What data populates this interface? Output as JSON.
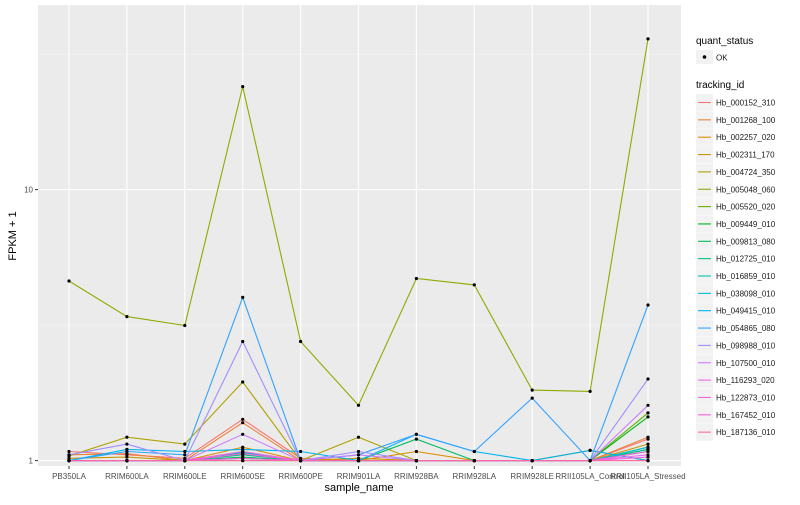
{
  "chart_data": {
    "type": "line",
    "title": "",
    "xlabel": "sample_name",
    "ylabel": "FPKM + 1",
    "y_scale": "log10",
    "ylim": [
      0.955,
      48
    ],
    "y_ticks": [
      {
        "value": 1,
        "label": "1"
      },
      {
        "value": 10,
        "label": "10"
      }
    ],
    "categories": [
      "PB350LA",
      "RRIM600LA",
      "RRIM600LE",
      "RRIM600SE",
      "RRIM600PE",
      "RRIM901LA",
      "RRIM928BA",
      "RRIM928LA",
      "RRIM928LE",
      "RRII105LA_Control",
      "RRII105LA_Stressed"
    ],
    "point_label": "OK",
    "legend": {
      "position": "right",
      "quant_status_title": "quant_status",
      "tracking_id_title": "tracking_id"
    },
    "series": [
      {
        "name": "Hb_000152_310",
        "color": "#F8766D",
        "values": [
          1.08,
          1.05,
          1.02,
          1.42,
          1.02,
          1.0,
          1.0,
          1.0,
          1.0,
          1.0,
          1.2
        ]
      },
      {
        "name": "Hb_001268_100",
        "color": "#EC8239",
        "values": [
          1.05,
          1.06,
          1.0,
          1.38,
          1.0,
          1.0,
          1.0,
          1.0,
          1.0,
          1.0,
          1.22
        ]
      },
      {
        "name": "Hb_002257_020",
        "color": "#DB8E00",
        "values": [
          1.0,
          1.0,
          1.0,
          1.12,
          1.0,
          1.0,
          1.08,
          1.0,
          1.0,
          1.09,
          1.0
        ]
      },
      {
        "name": "Hb_002311_170",
        "color": "#C79800",
        "values": [
          1.02,
          1.03,
          1.0,
          1.08,
          1.0,
          1.02,
          1.0,
          1.0,
          1.0,
          1.0,
          1.15
        ]
      },
      {
        "name": "Hb_004724_350",
        "color": "#AEA200",
        "values": [
          1.04,
          1.22,
          1.15,
          1.95,
          1.0,
          1.22,
          1.0,
          1.0,
          1.0,
          1.0,
          1.12
        ]
      },
      {
        "name": "Hb_005048_060",
        "color": "#8FAA00",
        "values": [
          4.6,
          3.4,
          3.15,
          24.0,
          2.75,
          1.6,
          4.7,
          4.45,
          1.82,
          1.8,
          36.0
        ]
      },
      {
        "name": "Hb_005520_020",
        "color": "#64B200",
        "values": [
          1.0,
          1.0,
          1.0,
          1.0,
          1.0,
          1.0,
          1.0,
          1.0,
          1.0,
          1.0,
          1.5
        ]
      },
      {
        "name": "Hb_009449_010",
        "color": "#00B81B",
        "values": [
          1.0,
          1.0,
          1.0,
          1.02,
          1.0,
          1.0,
          1.0,
          1.0,
          1.0,
          1.0,
          1.45
        ]
      },
      {
        "name": "Hb_009813_080",
        "color": "#00BD5C",
        "values": [
          1.0,
          1.0,
          1.0,
          1.03,
          1.0,
          1.0,
          1.2,
          1.0,
          1.0,
          1.0,
          1.1
        ]
      },
      {
        "name": "Hb_012725_010",
        "color": "#00C08E",
        "values": [
          1.0,
          1.0,
          1.0,
          1.05,
          1.0,
          1.0,
          1.0,
          1.0,
          1.0,
          1.0,
          1.1
        ]
      },
      {
        "name": "Hb_016859_010",
        "color": "#00C1B7",
        "values": [
          1.0,
          1.0,
          1.0,
          1.07,
          1.0,
          1.0,
          1.0,
          1.0,
          1.0,
          1.0,
          1.08
        ]
      },
      {
        "name": "Hb_038098_010",
        "color": "#00BDDC",
        "values": [
          1.0,
          1.0,
          1.0,
          1.06,
          1.0,
          1.0,
          1.0,
          1.0,
          1.0,
          1.0,
          1.12
        ]
      },
      {
        "name": "Hb_049415_010",
        "color": "#00B4EF",
        "values": [
          1.0,
          1.1,
          1.08,
          1.1,
          1.08,
          1.0,
          1.25,
          1.08,
          1.0,
          1.09,
          1.0
        ]
      },
      {
        "name": "Hb_054865_080",
        "color": "#35A2FF",
        "values": [
          1.0,
          1.08,
          1.05,
          4.0,
          1.0,
          1.05,
          1.25,
          1.08,
          1.7,
          1.0,
          3.75
        ]
      },
      {
        "name": "Hb_098988_010",
        "color": "#9E8FFF",
        "values": [
          1.05,
          1.15,
          1.0,
          2.75,
          1.0,
          1.08,
          1.0,
          1.0,
          1.0,
          1.0,
          2.0
        ]
      },
      {
        "name": "Hb_107500_010",
        "color": "#CB7BFF",
        "values": [
          1.0,
          1.0,
          1.0,
          1.25,
          1.0,
          1.05,
          1.0,
          1.0,
          1.0,
          1.0,
          1.6
        ]
      },
      {
        "name": "Hb_116293_020",
        "color": "#E76BF3",
        "values": [
          1.0,
          1.0,
          1.0,
          1.08,
          1.0,
          1.0,
          1.0,
          1.0,
          1.0,
          1.0,
          1.05
        ]
      },
      {
        "name": "Hb_122873_010",
        "color": "#F563E3",
        "values": [
          1.0,
          1.0,
          1.0,
          1.02,
          1.0,
          1.0,
          1.0,
          1.0,
          1.0,
          1.0,
          1.03
        ]
      },
      {
        "name": "Hb_167452_010",
        "color": "#FE61CF",
        "values": [
          1.0,
          1.0,
          1.0,
          1.06,
          1.0,
          1.0,
          1.0,
          1.0,
          1.0,
          1.0,
          1.08
        ]
      },
      {
        "name": "Hb_187136_010",
        "color": "#FF67A4",
        "values": [
          1.0,
          1.0,
          1.0,
          1.0,
          1.0,
          1.0,
          1.0,
          1.0,
          1.0,
          1.0,
          1.0
        ]
      }
    ]
  }
}
